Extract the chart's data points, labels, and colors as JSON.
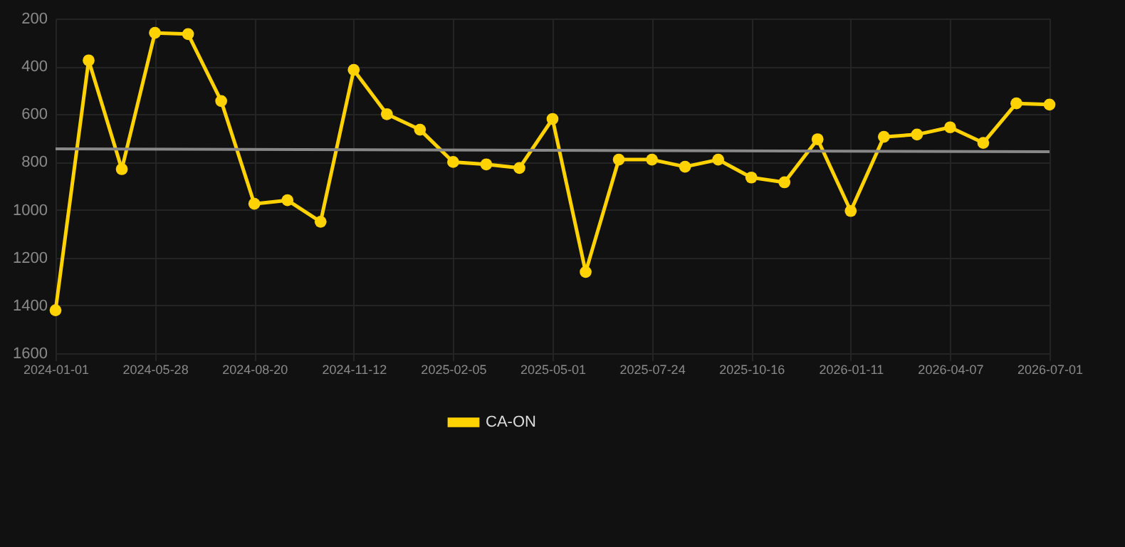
{
  "chart_data": {
    "type": "line",
    "categories": [
      "2024-01-01",
      null,
      null,
      "2024-05-28",
      null,
      null,
      "2024-08-20",
      null,
      null,
      "2024-11-12",
      null,
      null,
      "2025-02-05",
      null,
      null,
      "2025-05-01",
      null,
      null,
      "2025-07-24",
      null,
      null,
      "2025-10-16",
      null,
      null,
      "2026-01-11",
      null,
      null,
      "2026-04-07",
      null,
      null,
      "2026-07-01"
    ],
    "series": [
      {
        "name": "CA-ON",
        "color": "#ffd200",
        "values": [
          1420,
          375,
          830,
          260,
          265,
          545,
          975,
          960,
          1050,
          415,
          600,
          665,
          800,
          810,
          825,
          620,
          1260,
          790,
          790,
          820,
          790,
          865,
          885,
          705,
          1005,
          695,
          685,
          655,
          720,
          555,
          560
        ]
      },
      {
        "type": "line",
        "color": "#888888",
        "marker": "none",
        "values": [
          745,
          null,
          null,
          null,
          null,
          null,
          null,
          null,
          null,
          null,
          null,
          null,
          null,
          null,
          null,
          null,
          null,
          null,
          null,
          null,
          null,
          null,
          null,
          null,
          null,
          null,
          null,
          null,
          null,
          null,
          757
        ]
      }
    ],
    "ylim": [
      1600,
      200
    ],
    "yticks": [
      200,
      400,
      600,
      800,
      1000,
      1200,
      1400,
      1600
    ],
    "grid": true,
    "legend": "bottom",
    "marker": "circle",
    "line_style": "solid"
  }
}
